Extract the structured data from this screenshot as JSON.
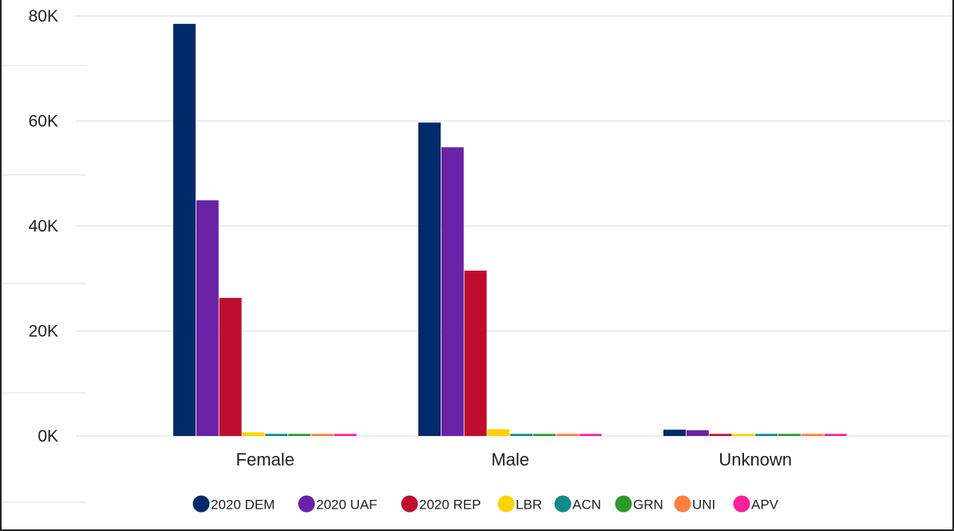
{
  "chart_data": {
    "type": "bar",
    "title": "",
    "xlabel": "",
    "ylabel": "",
    "categories": [
      "Female",
      "Male",
      "Unknown"
    ],
    "ylim": [
      0,
      80000
    ],
    "yticks": [
      0,
      20000,
      40000,
      60000,
      80000
    ],
    "ytick_labels": [
      "0K",
      "20K",
      "40K",
      "60K",
      "80K"
    ],
    "grid": true,
    "legend_position": "bottom",
    "series": [
      {
        "name": "2020 DEM",
        "color": "#002b6b",
        "values": [
          78500,
          59700,
          1200
        ]
      },
      {
        "name": "2020 UAF",
        "color": "#6a22a8",
        "values": [
          44900,
          55000,
          1100
        ]
      },
      {
        "name": "2020 REP",
        "color": "#bf0d30",
        "values": [
          26300,
          31500,
          400
        ]
      },
      {
        "name": "LBR",
        "color": "#ffd200",
        "values": [
          700,
          1300,
          400
        ]
      },
      {
        "name": "ACN",
        "color": "#0f8a8a",
        "values": [
          400,
          400,
          400
        ]
      },
      {
        "name": "GRN",
        "color": "#2a9a2a",
        "values": [
          400,
          400,
          400
        ]
      },
      {
        "name": "UNI",
        "color": "#ff7f3e",
        "values": [
          400,
          400,
          400
        ]
      },
      {
        "name": "APV",
        "color": "#ff1f9a",
        "values": [
          400,
          400,
          400
        ]
      }
    ]
  }
}
